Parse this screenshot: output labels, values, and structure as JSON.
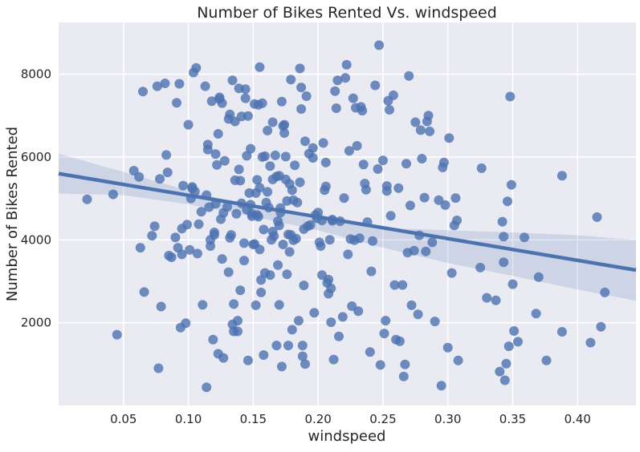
{
  "chart_data": {
    "type": "scatter",
    "title": "Number of Bikes Rented Vs. windspeed",
    "xlabel": "windspeed",
    "ylabel": "Number of Bikes Rented",
    "xlim": [
      0.0,
      0.445
    ],
    "ylim": [
      0,
      9250
    ],
    "xticks": [
      "0.05",
      "0.10",
      "0.15",
      "0.20",
      "0.25",
      "0.30",
      "0.35",
      "0.40"
    ],
    "yticks": [
      "2000",
      "4000",
      "6000",
      "8000"
    ],
    "grid": true,
    "legend": "none",
    "colors": {
      "points": "#4c72b0",
      "line": "#4c72b0",
      "band": "#4c72b0",
      "background": "#eaeaf2",
      "grid": "#ffffff"
    },
    "regression": {
      "x": [
        0.0,
        0.445
      ],
      "y": [
        5600,
        3270
      ]
    },
    "confidence_band": {
      "x": [
        0.0,
        0.05,
        0.1,
        0.15,
        0.2,
        0.25,
        0.3,
        0.35,
        0.4,
        0.445
      ],
      "upper": [
        6080,
        5640,
        5190,
        4790,
        4490,
        4290,
        4230,
        4180,
        4110,
        4000
      ],
      "lower": [
        5120,
        5080,
        4860,
        4560,
        4230,
        3810,
        3440,
        3130,
        2800,
        2530
      ]
    },
    "points": [
      [
        0.022,
        4980
      ],
      [
        0.042,
        5100
      ],
      [
        0.045,
        1710
      ],
      [
        0.058,
        5670
      ],
      [
        0.062,
        5520
      ],
      [
        0.063,
        3810
      ],
      [
        0.065,
        7580
      ],
      [
        0.066,
        2740
      ],
      [
        0.072,
        4100
      ],
      [
        0.074,
        4330
      ],
      [
        0.076,
        7710
      ],
      [
        0.077,
        900
      ],
      [
        0.078,
        5470
      ],
      [
        0.079,
        2390
      ],
      [
        0.082,
        7780
      ],
      [
        0.083,
        6050
      ],
      [
        0.084,
        5630
      ],
      [
        0.085,
        3620
      ],
      [
        0.087,
        3580
      ],
      [
        0.09,
        4060
      ],
      [
        0.091,
        7310
      ],
      [
        0.092,
        3810
      ],
      [
        0.093,
        7770
      ],
      [
        0.094,
        1880
      ],
      [
        0.095,
        3650
      ],
      [
        0.095,
        4270
      ],
      [
        0.096,
        5310
      ],
      [
        0.098,
        1990
      ],
      [
        0.099,
        4370
      ],
      [
        0.1,
        6780
      ],
      [
        0.101,
        3760
      ],
      [
        0.102,
        5000
      ],
      [
        0.103,
        5280
      ],
      [
        0.103,
        5240
      ],
      [
        0.104,
        8040
      ],
      [
        0.105,
        5170
      ],
      [
        0.106,
        8150
      ],
      [
        0.107,
        3670
      ],
      [
        0.108,
        4380
      ],
      [
        0.11,
        4680
      ],
      [
        0.111,
        2430
      ],
      [
        0.113,
        7710
      ],
      [
        0.114,
        5080
      ],
      [
        0.114,
        440
      ],
      [
        0.115,
        6180
      ],
      [
        0.115,
        6300
      ],
      [
        0.116,
        4790
      ],
      [
        0.117,
        4000
      ],
      [
        0.117,
        3850
      ],
      [
        0.118,
        7350
      ],
      [
        0.119,
        1590
      ],
      [
        0.12,
        4120
      ],
      [
        0.12,
        4180
      ],
      [
        0.121,
        6070
      ],
      [
        0.121,
        4870
      ],
      [
        0.122,
        5810
      ],
      [
        0.123,
        1250
      ],
      [
        0.123,
        6560
      ],
      [
        0.124,
        7440
      ],
      [
        0.124,
        7400
      ],
      [
        0.125,
        4500
      ],
      [
        0.126,
        3540
      ],
      [
        0.126,
        7300
      ],
      [
        0.127,
        1150
      ],
      [
        0.127,
        4650
      ],
      [
        0.128,
        5910
      ],
      [
        0.13,
        4800
      ],
      [
        0.131,
        3220
      ],
      [
        0.131,
        6920
      ],
      [
        0.132,
        7030
      ],
      [
        0.132,
        4050
      ],
      [
        0.133,
        4120
      ],
      [
        0.134,
        1960
      ],
      [
        0.134,
        7850
      ],
      [
        0.135,
        1790
      ],
      [
        0.135,
        2450
      ],
      [
        0.136,
        5440
      ],
      [
        0.136,
        6860
      ],
      [
        0.137,
        4630
      ],
      [
        0.138,
        2050
      ],
      [
        0.138,
        1790
      ],
      [
        0.139,
        7660
      ],
      [
        0.139,
        5700
      ],
      [
        0.14,
        5430
      ],
      [
        0.14,
        2780
      ],
      [
        0.141,
        6980
      ],
      [
        0.141,
        4880
      ],
      [
        0.143,
        3920
      ],
      [
        0.143,
        3500
      ],
      [
        0.144,
        7640
      ],
      [
        0.144,
        7420
      ],
      [
        0.145,
        4730
      ],
      [
        0.145,
        6030
      ],
      [
        0.146,
        6990
      ],
      [
        0.146,
        1090
      ],
      [
        0.147,
        5130
      ],
      [
        0.148,
        4850
      ],
      [
        0.148,
        6200
      ],
      [
        0.149,
        4630
      ],
      [
        0.149,
        4570
      ],
      [
        0.15,
        3890
      ],
      [
        0.151,
        7280
      ],
      [
        0.151,
        3900
      ],
      [
        0.152,
        2420
      ],
      [
        0.152,
        5130
      ],
      [
        0.153,
        5450
      ],
      [
        0.153,
        4600
      ],
      [
        0.154,
        7260
      ],
      [
        0.154,
        4560
      ],
      [
        0.155,
        8170
      ],
      [
        0.155,
        5260
      ],
      [
        0.155,
        3770
      ],
      [
        0.156,
        2730
      ],
      [
        0.156,
        3030
      ],
      [
        0.157,
        7300
      ],
      [
        0.157,
        6000
      ],
      [
        0.158,
        4250
      ],
      [
        0.158,
        1220
      ],
      [
        0.159,
        3200
      ],
      [
        0.159,
        6020
      ],
      [
        0.16,
        4900
      ],
      [
        0.161,
        6640
      ],
      [
        0.161,
        5160
      ],
      [
        0.162,
        4780
      ],
      [
        0.163,
        3150
      ],
      [
        0.163,
        5780
      ],
      [
        0.164,
        4000
      ],
      [
        0.165,
        6840
      ],
      [
        0.165,
        4200
      ],
      [
        0.165,
        5460
      ],
      [
        0.166,
        4090
      ],
      [
        0.167,
        6040
      ],
      [
        0.168,
        1450
      ],
      [
        0.168,
        5530
      ],
      [
        0.169,
        4450
      ],
      [
        0.169,
        3390
      ],
      [
        0.17,
        4350
      ],
      [
        0.17,
        2430
      ],
      [
        0.17,
        5550
      ],
      [
        0.171,
        4770
      ],
      [
        0.171,
        4660
      ],
      [
        0.172,
        940
      ],
      [
        0.172,
        7340
      ],
      [
        0.173,
        6750
      ],
      [
        0.173,
        3890
      ],
      [
        0.174,
        6780
      ],
      [
        0.174,
        6580
      ],
      [
        0.175,
        6010
      ],
      [
        0.175,
        5460
      ],
      [
        0.176,
        3170
      ],
      [
        0.176,
        4940
      ],
      [
        0.177,
        4130
      ],
      [
        0.177,
        1450
      ],
      [
        0.178,
        5350
      ],
      [
        0.178,
        3710
      ],
      [
        0.179,
        7870
      ],
      [
        0.179,
        4120
      ],
      [
        0.18,
        1830
      ],
      [
        0.18,
        5200
      ],
      [
        0.181,
        4960
      ],
      [
        0.181,
        3990
      ],
      [
        0.182,
        5800
      ],
      [
        0.183,
        4030
      ],
      [
        0.184,
        4900
      ],
      [
        0.185,
        2050
      ],
      [
        0.186,
        5390
      ],
      [
        0.186,
        8140
      ],
      [
        0.187,
        7680
      ],
      [
        0.187,
        7160
      ],
      [
        0.188,
        1190
      ],
      [
        0.188,
        1450
      ],
      [
        0.189,
        4260
      ],
      [
        0.189,
        2900
      ],
      [
        0.19,
        6380
      ],
      [
        0.19,
        1000
      ],
      [
        0.191,
        7470
      ],
      [
        0.192,
        4330
      ],
      [
        0.193,
        6080
      ],
      [
        0.194,
        4360
      ],
      [
        0.196,
        5980
      ],
      [
        0.196,
        6220
      ],
      [
        0.197,
        2240
      ],
      [
        0.198,
        4600
      ],
      [
        0.199,
        4520
      ],
      [
        0.2,
        4660
      ],
      [
        0.201,
        3940
      ],
      [
        0.202,
        3850
      ],
      [
        0.203,
        3150
      ],
      [
        0.203,
        4470
      ],
      [
        0.204,
        6340
      ],
      [
        0.205,
        5200
      ],
      [
        0.206,
        5290
      ],
      [
        0.206,
        5870
      ],
      [
        0.207,
        2960
      ],
      [
        0.208,
        2700
      ],
      [
        0.208,
        3040
      ],
      [
        0.209,
        4000
      ],
      [
        0.21,
        2830
      ],
      [
        0.21,
        2010
      ],
      [
        0.211,
        4490
      ],
      [
        0.211,
        4460
      ],
      [
        0.212,
        1110
      ],
      [
        0.213,
        7590
      ],
      [
        0.214,
        7180
      ],
      [
        0.215,
        7850
      ],
      [
        0.216,
        1670
      ],
      [
        0.217,
        4450
      ],
      [
        0.219,
        2140
      ],
      [
        0.22,
        5010
      ],
      [
        0.221,
        7910
      ],
      [
        0.222,
        8230
      ],
      [
        0.223,
        3650
      ],
      [
        0.224,
        6150
      ],
      [
        0.225,
        4020
      ],
      [
        0.226,
        2400
      ],
      [
        0.227,
        7420
      ],
      [
        0.228,
        3990
      ],
      [
        0.229,
        7190
      ],
      [
        0.23,
        6270
      ],
      [
        0.231,
        2280
      ],
      [
        0.232,
        4040
      ],
      [
        0.233,
        7210
      ],
      [
        0.234,
        7120
      ],
      [
        0.235,
        5820
      ],
      [
        0.236,
        5360
      ],
      [
        0.237,
        5210
      ],
      [
        0.238,
        4430
      ],
      [
        0.24,
        1290
      ],
      [
        0.241,
        3240
      ],
      [
        0.242,
        3970
      ],
      [
        0.244,
        7730
      ],
      [
        0.246,
        5710
      ],
      [
        0.247,
        8700
      ],
      [
        0.248,
        980
      ],
      [
        0.25,
        5920
      ],
      [
        0.251,
        1740
      ],
      [
        0.252,
        2050
      ],
      [
        0.253,
        5180
      ],
      [
        0.253,
        5300
      ],
      [
        0.254,
        7360
      ],
      [
        0.255,
        7140
      ],
      [
        0.256,
        4580
      ],
      [
        0.258,
        7490
      ],
      [
        0.259,
        2910
      ],
      [
        0.26,
        1590
      ],
      [
        0.262,
        5250
      ],
      [
        0.263,
        1550
      ],
      [
        0.265,
        2910
      ],
      [
        0.266,
        700
      ],
      [
        0.267,
        990
      ],
      [
        0.268,
        5840
      ],
      [
        0.269,
        3690
      ],
      [
        0.27,
        7960
      ],
      [
        0.271,
        4830
      ],
      [
        0.272,
        2420
      ],
      [
        0.274,
        3740
      ],
      [
        0.275,
        6840
      ],
      [
        0.277,
        2200
      ],
      [
        0.278,
        4110
      ],
      [
        0.279,
        6650
      ],
      [
        0.28,
        5960
      ],
      [
        0.282,
        5020
      ],
      [
        0.283,
        3720
      ],
      [
        0.284,
        6860
      ],
      [
        0.285,
        7000
      ],
      [
        0.286,
        6620
      ],
      [
        0.288,
        3940
      ],
      [
        0.29,
        2030
      ],
      [
        0.293,
        4960
      ],
      [
        0.295,
        480
      ],
      [
        0.296,
        5750
      ],
      [
        0.297,
        5870
      ],
      [
        0.298,
        4840
      ],
      [
        0.3,
        1400
      ],
      [
        0.301,
        6460
      ],
      [
        0.303,
        3200
      ],
      [
        0.305,
        4350
      ],
      [
        0.306,
        5010
      ],
      [
        0.307,
        4470
      ],
      [
        0.308,
        1090
      ],
      [
        0.325,
        3330
      ],
      [
        0.326,
        5730
      ],
      [
        0.33,
        2600
      ],
      [
        0.337,
        2540
      ],
      [
        0.34,
        820
      ],
      [
        0.342,
        4440
      ],
      [
        0.343,
        3460
      ],
      [
        0.343,
        4080
      ],
      [
        0.344,
        610
      ],
      [
        0.345,
        1010
      ],
      [
        0.346,
        4930
      ],
      [
        0.347,
        1430
      ],
      [
        0.348,
        7460
      ],
      [
        0.349,
        5330
      ],
      [
        0.35,
        2930
      ],
      [
        0.351,
        1800
      ],
      [
        0.354,
        1540
      ],
      [
        0.359,
        4060
      ],
      [
        0.368,
        2220
      ],
      [
        0.37,
        3100
      ],
      [
        0.376,
        1090
      ],
      [
        0.388,
        1780
      ],
      [
        0.388,
        5550
      ],
      [
        0.41,
        1520
      ],
      [
        0.415,
        4550
      ],
      [
        0.418,
        1900
      ],
      [
        0.421,
        2730
      ]
    ]
  }
}
